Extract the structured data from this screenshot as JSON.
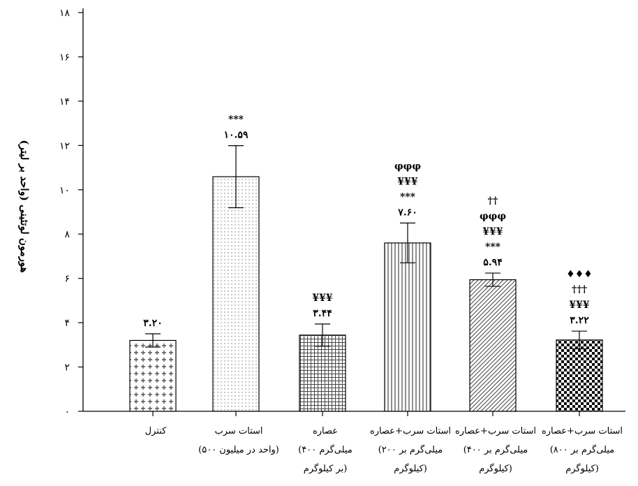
{
  "chart_data": {
    "type": "bar",
    "title": "",
    "xlabel": "",
    "ylabel": "هورمون لوتئینی (واحد بر لیتر)",
    "ylim": [
      0,
      18
    ],
    "yticks": [
      "۰",
      "۲",
      "۴",
      "۶",
      "۸",
      "۱۰",
      "۱۲",
      "۱۴",
      "۱۶",
      "۱۸"
    ],
    "ytick_values": [
      0,
      2,
      4,
      6,
      8,
      10,
      12,
      14,
      16,
      18
    ],
    "grid": false,
    "categories": [
      [
        "کنترل"
      ],
      [
        "استات سرب",
        "(۵۰۰ واحد در میلیون)"
      ],
      [
        "عصاره",
        "(۴۰۰ میلی‌گرم",
        "بر کیلوگرم)"
      ],
      [
        "استات سرب+عصاره",
        "(۲۰۰ میلی‌گرم بر",
        "کیلوگرم)"
      ],
      [
        "استات سرب+عصاره",
        "(۴۰۰ میلی‌گرم بر",
        "کیلوگرم)"
      ],
      [
        "استات سرب+عصاره",
        "(۸۰۰ میلی‌گرم بر",
        "کیلوگرم)"
      ]
    ],
    "values": [
      3.2,
      10.59,
      3.44,
      7.6,
      5.94,
      3.22
    ],
    "errors": [
      0.3,
      1.4,
      0.5,
      0.9,
      0.3,
      0.4
    ],
    "value_labels": [
      "۳.۲۰",
      "۱۰.۵۹",
      "۳.۴۴",
      "۷.۶۰",
      "۵.۹۴",
      "۳.۲۲"
    ],
    "significance": [
      [],
      [
        "***"
      ],
      [
        "¥¥¥"
      ],
      [
        "φφφ",
        "¥¥¥",
        "***"
      ],
      [
        "††",
        "φφφ",
        "¥¥¥",
        "***"
      ],
      [
        "♦♦♦",
        "†††",
        "¥¥¥"
      ]
    ],
    "patterns": [
      "crosses",
      "dots",
      "grid",
      "vlines",
      "diagonal",
      "checker"
    ]
  }
}
